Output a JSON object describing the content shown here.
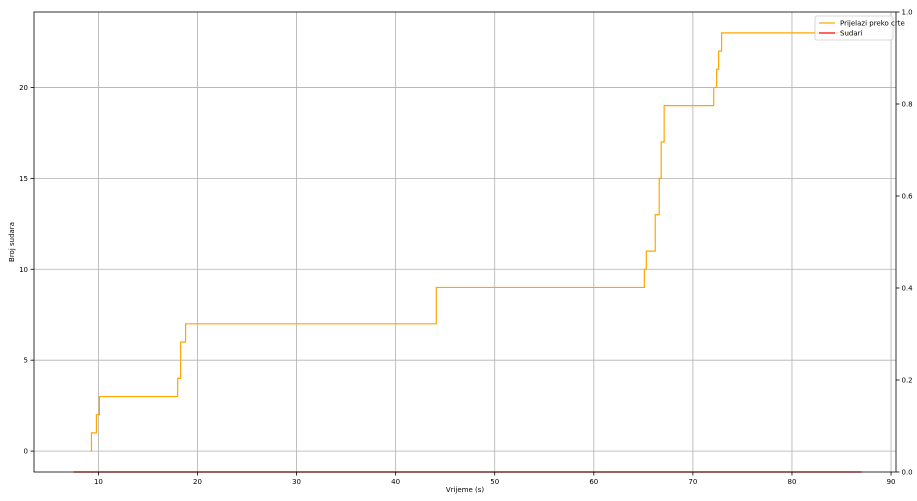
{
  "chart_data": {
    "type": "line",
    "xlabel": "Vrijeme (s)",
    "ylabel": "Broj sudara",
    "xlim": [
      3.5,
      90.5
    ],
    "ylim": [
      -1.15,
      24.15
    ],
    "y2lim": [
      0,
      1
    ],
    "x_ticks": [
      10,
      20,
      30,
      40,
      50,
      60,
      70,
      80,
      90
    ],
    "y_ticks": [
      0,
      5,
      10,
      15,
      20
    ],
    "y2_ticks": [
      "0.0",
      "0.2",
      "0.4",
      "0.6",
      "0.8",
      "1.0"
    ],
    "grid": true,
    "legend_position": "upper right",
    "series": [
      {
        "name": "Prijelazi preko crte",
        "color": "#ffa500",
        "axis": "left",
        "steps": [
          [
            9.2,
            0
          ],
          [
            9.3,
            1
          ],
          [
            9.8,
            2
          ],
          [
            10.1,
            3
          ],
          [
            18.0,
            4
          ],
          [
            18.3,
            6
          ],
          [
            18.8,
            7
          ],
          [
            44.1,
            9
          ],
          [
            65.1,
            10
          ],
          [
            65.3,
            11
          ],
          [
            66.2,
            13
          ],
          [
            66.6,
            15
          ],
          [
            66.8,
            17
          ],
          [
            67.1,
            19
          ],
          [
            72.1,
            20
          ],
          [
            72.4,
            21
          ],
          [
            72.6,
            22
          ],
          [
            72.9,
            23
          ],
          [
            86.0,
            23
          ]
        ]
      },
      {
        "name": "Sudari",
        "color": "#ff0000",
        "axis": "right",
        "points": [
          [
            7.5,
            0
          ],
          [
            87.0,
            0
          ]
        ]
      }
    ]
  }
}
